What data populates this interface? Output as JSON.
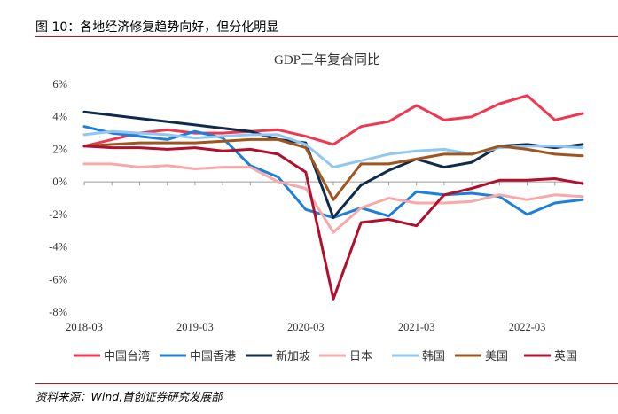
{
  "figure": {
    "caption": "图 10：各地经济修复趋势向好，但分化明显",
    "source": "资料来源：Wind,首创证券研究发展部"
  },
  "chart_data": {
    "type": "line",
    "title": "GDP三年复合同比",
    "xlabel": "",
    "ylabel": "",
    "ylim": [
      -8,
      6
    ],
    "yticks": [
      "-8%",
      "-6%",
      "-4%",
      "-2%",
      "0%",
      "2%",
      "4%",
      "6%"
    ],
    "ytick_values": [
      -8,
      -6,
      -4,
      -2,
      0,
      2,
      4,
      6
    ],
    "xticks": [
      "2018-03",
      "2019-03",
      "2020-03",
      "2021-03",
      "2022-03"
    ],
    "xtick_index": [
      0,
      4,
      8,
      12,
      16
    ],
    "categories": [
      "2018-03",
      "2018-06",
      "2018-09",
      "2018-12",
      "2019-03",
      "2019-06",
      "2019-09",
      "2019-12",
      "2020-03",
      "2020-06",
      "2020-09",
      "2020-12",
      "2021-03",
      "2021-06",
      "2021-09",
      "2021-12",
      "2022-03",
      "2022-06",
      "2022-09"
    ],
    "grid": false,
    "legend_position": "bottom",
    "series": [
      {
        "name": "中国台湾",
        "color": "#f0374f",
        "values": [
          2.2,
          2.6,
          3.0,
          3.2,
          3.0,
          3.0,
          3.1,
          3.2,
          2.8,
          2.3,
          3.4,
          3.7,
          4.7,
          3.8,
          4.0,
          4.8,
          5.3,
          3.8,
          4.2
        ]
      },
      {
        "name": "中国香港",
        "color": "#1e7fd8",
        "values": [
          3.4,
          3.0,
          2.8,
          2.6,
          3.1,
          2.7,
          1.0,
          0.3,
          -1.7,
          -2.2,
          -1.6,
          -2.1,
          -0.6,
          -0.8,
          -0.7,
          -0.9,
          -2.0,
          -1.3,
          -1.1
        ]
      },
      {
        "name": "新加坡",
        "color": "#0f2a4a",
        "values": [
          4.3,
          4.1,
          3.9,
          3.7,
          3.5,
          3.3,
          3.1,
          2.6,
          2.4,
          -2.2,
          -0.2,
          0.7,
          1.4,
          0.9,
          1.2,
          2.2,
          2.3,
          2.1,
          2.3
        ]
      },
      {
        "name": "日本",
        "color": "#f7a8a8",
        "values": [
          1.1,
          1.1,
          0.9,
          1.0,
          0.8,
          0.9,
          0.9,
          0.0,
          -0.4,
          -3.1,
          -1.6,
          -1.0,
          -1.3,
          -1.3,
          -1.2,
          -0.8,
          -1.1,
          -0.8,
          -0.9
        ]
      },
      {
        "name": "韩国",
        "color": "#8ec8f2",
        "values": [
          2.9,
          3.1,
          3.0,
          2.9,
          2.7,
          2.8,
          2.9,
          2.9,
          2.3,
          0.9,
          1.3,
          1.7,
          1.9,
          2.0,
          1.7,
          2.1,
          2.2,
          2.2,
          2.1
        ]
      },
      {
        "name": "美国",
        "color": "#a0541e",
        "values": [
          2.2,
          2.3,
          2.4,
          2.4,
          2.4,
          2.5,
          2.6,
          2.6,
          2.1,
          -1.1,
          1.1,
          1.1,
          1.4,
          1.7,
          1.7,
          2.2,
          2.0,
          1.7,
          1.6
        ]
      },
      {
        "name": "英国",
        "color": "#b0102e",
        "values": [
          2.2,
          2.1,
          2.1,
          2.0,
          2.1,
          1.9,
          2.0,
          1.7,
          0.6,
          -7.2,
          -2.5,
          -2.3,
          -2.7,
          -0.8,
          -0.4,
          0.1,
          0.1,
          0.2,
          -0.1
        ]
      }
    ]
  }
}
